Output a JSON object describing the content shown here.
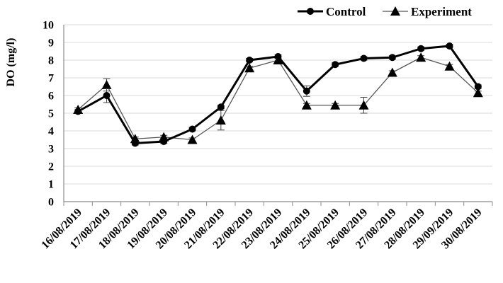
{
  "chart_data": {
    "type": "line",
    "title": "",
    "xlabel": "",
    "ylabel": "DO (mg/l)",
    "ylim": [
      0,
      10
    ],
    "y_ticks": [
      "0",
      "1",
      "2",
      "3",
      "4",
      "5",
      "6",
      "7",
      "8",
      "9",
      "10"
    ],
    "grid": true,
    "legend_position": "top-right",
    "categories": [
      "16/08/2019",
      "17/08/2019",
      "18/08/2019",
      "19/08/2019",
      "20/08/2019",
      "21/08/2019",
      "22/08/2019",
      "23/08/2019",
      "24/08/2019",
      "25/08/2019",
      "26/08/2019",
      "27/08/2019",
      "28/08/2019",
      "29/09/2019",
      "30/08/2019"
    ],
    "series": [
      {
        "name": "Control",
        "marker": "circle",
        "color": "#000000",
        "values": [
          5.1,
          6.0,
          3.3,
          3.4,
          4.1,
          5.35,
          8.0,
          8.2,
          6.25,
          7.75,
          8.1,
          8.15,
          8.65,
          8.8,
          6.5
        ],
        "errors": [
          0.1,
          0.4,
          0.1,
          0.1,
          0.1,
          0.1,
          0.1,
          0.1,
          0.3,
          0.1,
          0.1,
          0.1,
          0.1,
          0.1,
          0.1
        ]
      },
      {
        "name": "Experiment",
        "marker": "triangle",
        "color": "#555555",
        "values": [
          5.2,
          6.6,
          3.55,
          3.65,
          3.5,
          4.6,
          7.55,
          8.0,
          5.45,
          5.45,
          5.45,
          7.3,
          8.15,
          7.65,
          6.15
        ],
        "errors": [
          0.1,
          0.35,
          0.1,
          0.1,
          0.1,
          0.55,
          0.1,
          0.1,
          0.1,
          0.1,
          0.45,
          0.1,
          0.1,
          0.1,
          0.1
        ]
      }
    ]
  }
}
